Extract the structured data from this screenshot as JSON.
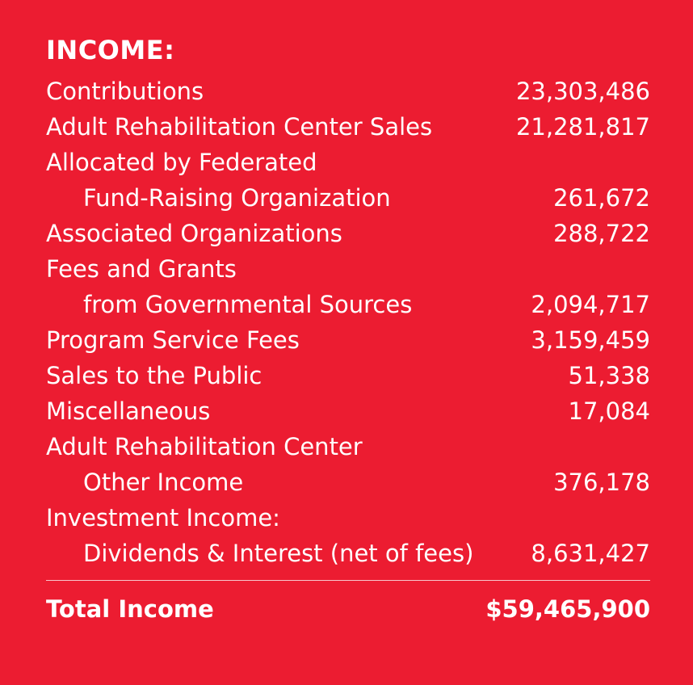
{
  "heading": "INCOME:",
  "rows": [
    {
      "label": "Contributions",
      "value": "23,303,486"
    },
    {
      "label": "Adult Rehabilitation Center Sales",
      "value": "21,281,817"
    },
    {
      "label": "Allocated by Federated",
      "value": ""
    },
    {
      "label": "Fund-Raising Organization",
      "value": "261,672"
    },
    {
      "label": "Associated Organizations",
      "value": "288,722"
    },
    {
      "label": "Fees and Grants",
      "value": ""
    },
    {
      "label": "from Governmental Sources",
      "value": "2,094,717"
    },
    {
      "label": "Program Service Fees",
      "value": "3,159,459"
    },
    {
      "label": "Sales to the Public",
      "value": "51,338"
    },
    {
      "label": "Miscellaneous",
      "value": "17,084"
    },
    {
      "label": "Adult Rehabilitation Center",
      "value": ""
    },
    {
      "label": "Other Income",
      "value": "376,178"
    },
    {
      "label": "Investment Income:",
      "value": ""
    },
    {
      "label": "Dividends & Interest (net of fees)",
      "value": "8,631,427"
    }
  ],
  "total": {
    "label": "Total Income",
    "value": "$59,465,900"
  },
  "colors": {
    "background": "#ec1c31",
    "text": "#ffffff",
    "divider": "#f7c5cb"
  }
}
